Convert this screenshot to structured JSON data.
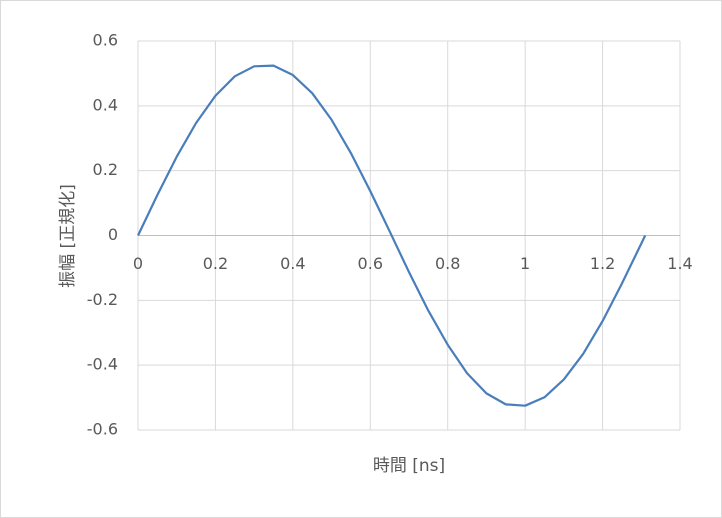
{
  "chart_data": {
    "type": "line",
    "xlabel": "時間 [ns]",
    "ylabel": "振幅 [正規化]",
    "x": [
      0,
      0.05,
      0.1,
      0.15,
      0.2,
      0.25,
      0.3,
      0.35,
      0.4,
      0.45,
      0.5,
      0.55,
      0.6,
      0.65,
      0.7,
      0.75,
      0.8,
      0.85,
      0.9,
      0.95,
      1.0,
      1.05,
      1.1,
      1.15,
      1.2,
      1.25,
      1.3,
      1.31
    ],
    "values": [
      0,
      0.125,
      0.243,
      0.347,
      0.431,
      0.491,
      0.522,
      0.524,
      0.495,
      0.439,
      0.357,
      0.254,
      0.137,
      0.013,
      -0.113,
      -0.232,
      -0.337,
      -0.425,
      -0.487,
      -0.521,
      -0.525,
      -0.499,
      -0.444,
      -0.365,
      -0.264,
      -0.148,
      -0.025,
      0
    ],
    "color": "#4a7ebb",
    "xlim": [
      0,
      1.4
    ],
    "xticks": [
      0,
      0.2,
      0.4,
      0.6,
      0.8,
      1,
      1.2,
      1.4
    ],
    "ylim": [
      -0.6,
      0.6
    ],
    "yticks": [
      0.6,
      0.4,
      0.2,
      0,
      -0.2,
      -0.4,
      -0.6
    ],
    "grid": true
  }
}
